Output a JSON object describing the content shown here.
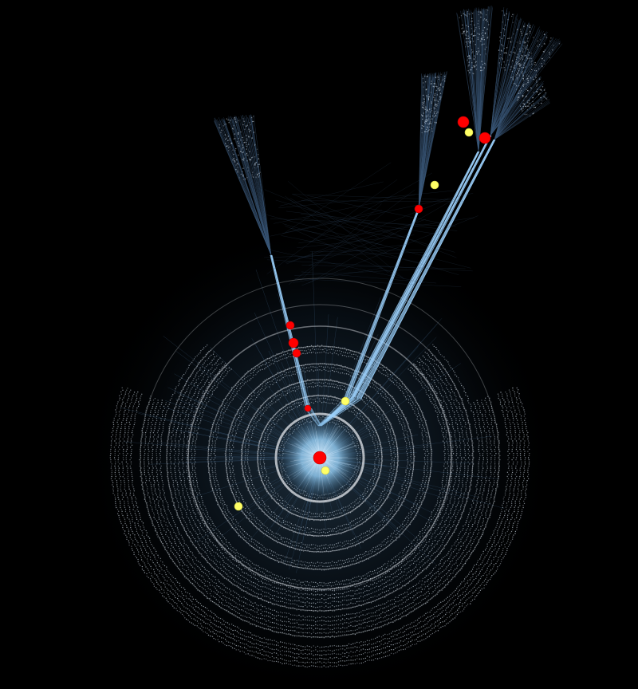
{
  "graph": {
    "background": "#000000",
    "colors": {
      "edge_dark": "#3a5878",
      "edge_light": "#9fd4ff",
      "node_dot": "#d0dce8",
      "ring": "#c8ccd2",
      "core": "#8fc8ee",
      "core_bright": "#cfe9ff",
      "red_node": "#ff0000",
      "yellow_node": "#ffff66"
    },
    "rings": [
      {
        "name": "ring-inner",
        "level": 1
      },
      {
        "name": "ring-2",
        "level": 2
      },
      {
        "name": "ring-3",
        "level": 3
      },
      {
        "name": "ring-4",
        "level": 4
      },
      {
        "name": "ring-5",
        "level": 5
      },
      {
        "name": "ring-6",
        "level": 6
      },
      {
        "name": "ring-7",
        "level": 7
      },
      {
        "name": "ring-outer",
        "level": 8
      }
    ],
    "branches": [
      {
        "name": "branch-left"
      },
      {
        "name": "branch-center"
      },
      {
        "name": "branch-right-a"
      },
      {
        "name": "branch-right-b"
      },
      {
        "name": "branch-right-c"
      }
    ],
    "highlighted_nodes": [
      {
        "name": "root-node",
        "color": "red"
      },
      {
        "name": "root-child-node",
        "color": "yellow"
      },
      {
        "name": "ring-node-west",
        "color": "yellow"
      },
      {
        "name": "branch-base-node-left",
        "color": "red"
      },
      {
        "name": "branch-base-node-right",
        "color": "yellow"
      },
      {
        "name": "left-branch-node-1",
        "color": "red"
      },
      {
        "name": "left-branch-node-2",
        "color": "red"
      },
      {
        "name": "left-branch-node-3",
        "color": "red"
      },
      {
        "name": "right-branch-node-1",
        "color": "red"
      },
      {
        "name": "right-branch-node-2",
        "color": "yellow"
      },
      {
        "name": "top-right-node-1",
        "color": "red"
      },
      {
        "name": "top-right-node-2",
        "color": "yellow"
      },
      {
        "name": "top-right-node-3",
        "color": "red"
      }
    ]
  }
}
